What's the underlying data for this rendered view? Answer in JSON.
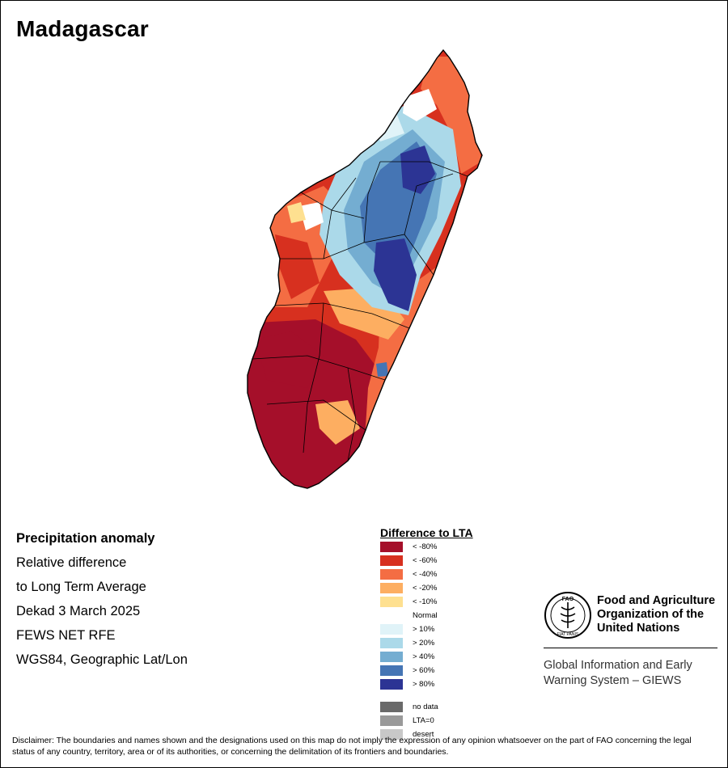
{
  "map": {
    "title": "Madagascar",
    "colors": {
      "outline": "#000000",
      "lt_neg80": "#a50f2a",
      "lt_neg60": "#d7301f",
      "lt_neg40": "#f46d43",
      "lt_neg20": "#fdae61",
      "lt_neg10": "#fee090",
      "normal": "#ffffff",
      "gt_10": "#e0f3f8",
      "gt_20": "#abd9e9",
      "gt_40": "#74add1",
      "gt_60": "#4575b4",
      "gt_80": "#2c3494"
    }
  },
  "info": {
    "heading": "Precipitation anomaly",
    "line1": "Relative difference",
    "line2": "to Long Term Average",
    "line3": "Dekad 3 March 2025",
    "line4": "FEWS NET RFE",
    "line5": "WGS84, Geographic Lat/Lon"
  },
  "legend": {
    "title": "Difference to LTA",
    "items": [
      {
        "label": "< -80%",
        "color": "#a50f2a"
      },
      {
        "label": "< -60%",
        "color": "#d7301f"
      },
      {
        "label": "< -40%",
        "color": "#f46d43"
      },
      {
        "label": "< -20%",
        "color": "#fdae61"
      },
      {
        "label": "< -10%",
        "color": "#fee090"
      },
      {
        "label": "> 10%",
        "color": "#e0f3f8"
      },
      {
        "label": "> 20%",
        "color": "#abd9e9"
      },
      {
        "label": "> 40%",
        "color": "#74add1"
      },
      {
        "label": "> 60%",
        "color": "#4575b4"
      },
      {
        "label": "> 80%",
        "color": "#2c3494"
      }
    ],
    "normal_label": "Normal",
    "extra": [
      {
        "label": "no data",
        "color": "#6a6a6a"
      },
      {
        "label": "LTA=0",
        "color": "#9a9a9a"
      },
      {
        "label": "desert",
        "color": "#c8c8c8"
      }
    ]
  },
  "org": {
    "name_line1": "Food and Agriculture",
    "name_line2": "Organization of the",
    "name_line3": "United Nations",
    "system_line1": "Global Information and Early",
    "system_line2": "Warning System – GIEWS",
    "logo_letters": "FAO",
    "logo_motto": "FIAT PANIS"
  },
  "disclaimer": "Disclaimer: The boundaries and names shown and the designations used on this map do not imply the expression of any opinion whatsoever on the part of FAO concerning the legal status of any country, territory, area or of its authorities, or concerning the delimitation of its frontiers and boundaries."
}
